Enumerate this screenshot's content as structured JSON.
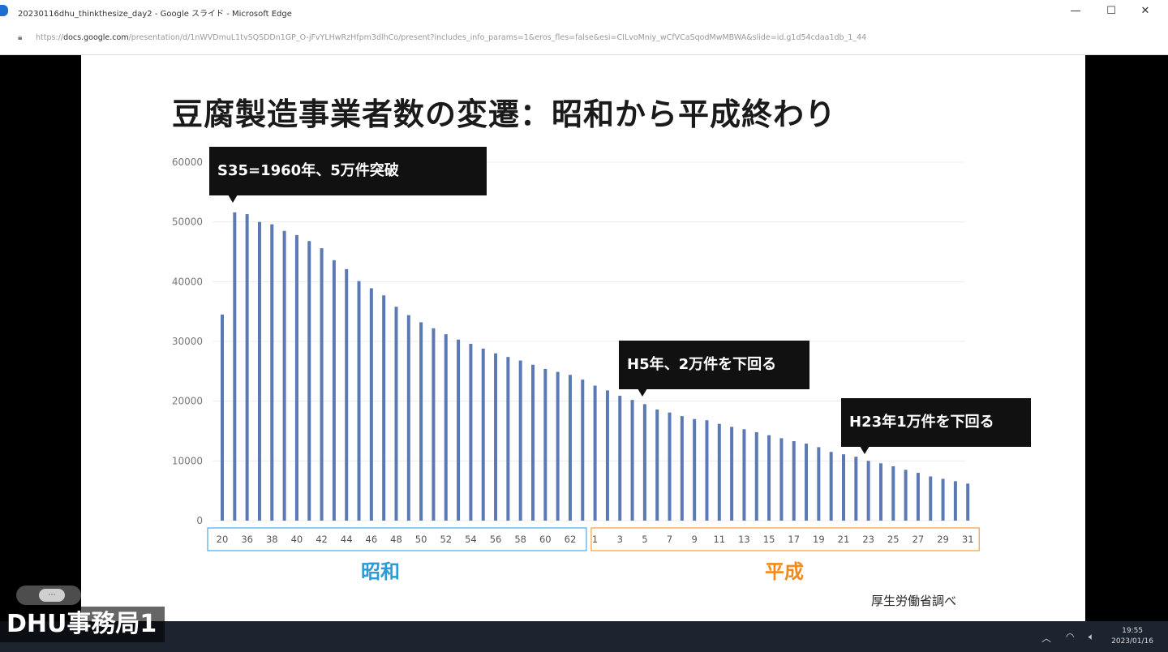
{
  "window": {
    "title": "20230116dhu_thinkthesize_day2 - Google スライド - Microsoft Edge",
    "minimize": "—",
    "maximize": "☐",
    "close": "✕"
  },
  "address_bar": {
    "domain": "docs.google.com",
    "url_prefix": "https://",
    "url_rest": "/presentation/d/1nWVDmuL1tvSQSDDn1GP_O-jFvYLHwRzHfpm3dlhCo/present?includes_info_params=1&eros_fles=false&esi=CILvoMniy_wCfVCaSqodMwMBWA&slide=id.g1d54cdaa1db_1_44"
  },
  "slide": {
    "title": "豆腐製造事業者数の変遷：昭和から平成終わり",
    "source": "厚生労働省調べ",
    "era_showa": "昭和",
    "era_heisei": "平成",
    "callouts": {
      "s35": "S35=1960年、5万件突破",
      "h5": "H5年、2万件を下回る",
      "h23": "H23年1万件を下回る"
    },
    "colors": {
      "bar": "#5b79b5",
      "showa": "#2a9bd8",
      "heisei": "#f08a1c"
    }
  },
  "chart_data": {
    "type": "bar",
    "title": "豆腐製造事業者数の変遷：昭和から平成終わり",
    "ylim": [
      0,
      60000
    ],
    "yticks": [
      0,
      10000,
      20000,
      30000,
      40000,
      50000,
      60000
    ],
    "grid": true,
    "era_groups": [
      {
        "label": "昭和",
        "range": [
          "20",
          "63"
        ]
      },
      {
        "label": "平成",
        "range": [
          "1",
          "31"
        ]
      }
    ],
    "categories": [
      "20",
      "35",
      "36",
      "37",
      "38",
      "39",
      "40",
      "41",
      "42",
      "43",
      "44",
      "45",
      "46",
      "47",
      "48",
      "49",
      "50",
      "51",
      "52",
      "53",
      "54",
      "55",
      "56",
      "57",
      "58",
      "59",
      "60",
      "61",
      "62",
      "63",
      "1",
      "2",
      "3",
      "4",
      "5",
      "6",
      "7",
      "8",
      "9",
      "10",
      "11",
      "12",
      "13",
      "14",
      "15",
      "16",
      "17",
      "18",
      "19",
      "20",
      "21",
      "22",
      "23",
      "24",
      "25",
      "26",
      "27",
      "28",
      "29",
      "30",
      "31"
    ],
    "visible_tick_labels": [
      "20",
      "36",
      "38",
      "40",
      "42",
      "44",
      "46",
      "48",
      "50",
      "52",
      "54",
      "56",
      "58",
      "60",
      "62",
      "1",
      "3",
      "5",
      "7",
      "9",
      "11",
      "13",
      "15",
      "17",
      "19",
      "21",
      "23",
      "25",
      "27",
      "29",
      "31"
    ],
    "values": [
      34500,
      51600,
      51300,
      50000,
      49600,
      48500,
      47800,
      46800,
      45600,
      43600,
      42100,
      40100,
      38900,
      37700,
      35800,
      34400,
      33200,
      32200,
      31200,
      30300,
      29600,
      28800,
      28000,
      27400,
      26800,
      26100,
      25400,
      24900,
      24400,
      23600,
      22600,
      21800,
      20900,
      20200,
      19500,
      18600,
      18100,
      17500,
      17000,
      16800,
      16200,
      15700,
      15300,
      14800,
      14300,
      13800,
      13300,
      12900,
      12300,
      11500,
      11100,
      10700,
      10000,
      9600,
      9100,
      8500,
      8000,
      7400,
      7000,
      6600,
      6200
    ]
  },
  "taskbar": {
    "time": "19:55",
    "date": "2023/01/16"
  },
  "presenter": {
    "pill": "⋯",
    "name": "DHU事務局1"
  }
}
